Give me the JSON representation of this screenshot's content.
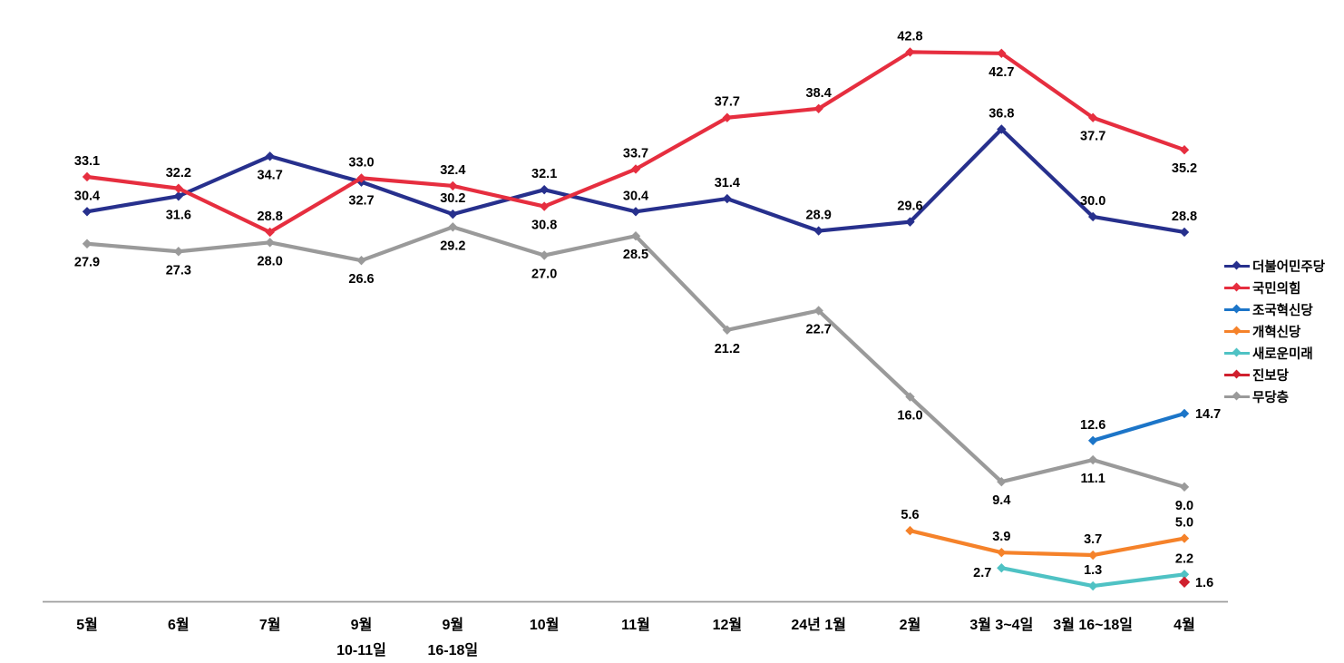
{
  "chart_data": {
    "type": "line",
    "title": "",
    "xlabel": "",
    "ylabel": "",
    "ylim": [
      0,
      46
    ],
    "grid": false,
    "y_axis_visible": false,
    "legend_position": "right",
    "axis_line_color": "#9E9E9E",
    "data_label_color": "#000000",
    "marker_shape": "diamond",
    "categories": [
      [
        "5월"
      ],
      [
        "6월"
      ],
      [
        "7월"
      ],
      [
        "9월",
        "10-11일"
      ],
      [
        "9월",
        "16-18일"
      ],
      [
        "10월"
      ],
      [
        "11월"
      ],
      [
        "12월"
      ],
      [
        "24년 1월"
      ],
      [
        "2월"
      ],
      [
        "3월 3~4일"
      ],
      [
        "3월 16~18일"
      ],
      [
        "4월"
      ]
    ],
    "series": [
      {
        "id": "democratic-party",
        "name": "더불어민주당",
        "color": "#27308D",
        "values": [
          30.4,
          31.6,
          34.7,
          32.7,
          30.2,
          32.1,
          30.4,
          31.4,
          28.9,
          29.6,
          36.8,
          30.0,
          28.8
        ],
        "label_pos": [
          "a",
          "b",
          "b",
          "b",
          "a",
          "a",
          "a",
          "a",
          "a",
          "a",
          "a",
          "a",
          "a"
        ]
      },
      {
        "id": "people-power-party",
        "name": "국민의힘",
        "color": "#E62E3F",
        "values": [
          33.1,
          32.2,
          28.8,
          33.0,
          32.4,
          30.8,
          33.7,
          37.7,
          38.4,
          42.8,
          42.7,
          37.7,
          35.2
        ],
        "label_pos": [
          "a",
          "a",
          "a",
          "a",
          "a",
          "b",
          "a",
          "a",
          "a",
          "a",
          "b",
          "b",
          "b"
        ]
      },
      {
        "id": "rebuilding-korea-party",
        "name": "조국혁신당",
        "color": "#1C75C8",
        "values": [
          null,
          null,
          null,
          null,
          null,
          null,
          null,
          null,
          null,
          null,
          null,
          12.6,
          14.7
        ],
        "label_pos": [
          null,
          null,
          null,
          null,
          null,
          null,
          null,
          null,
          null,
          null,
          null,
          "a",
          "r"
        ]
      },
      {
        "id": "reform-party",
        "name": "개혁신당",
        "color": "#F5822A",
        "values": [
          null,
          null,
          null,
          null,
          null,
          null,
          null,
          null,
          null,
          5.6,
          3.9,
          3.7,
          5.0
        ],
        "label_pos": [
          null,
          null,
          null,
          null,
          null,
          null,
          null,
          null,
          null,
          "a",
          "a",
          "a",
          "a"
        ]
      },
      {
        "id": "new-future-party",
        "name": "새로운미래",
        "color": "#4FC2C4",
        "values": [
          null,
          null,
          null,
          null,
          null,
          null,
          null,
          null,
          null,
          null,
          2.7,
          1.3,
          2.2
        ],
        "label_pos": [
          null,
          null,
          null,
          null,
          null,
          null,
          null,
          null,
          null,
          null,
          "l",
          "a",
          "a"
        ]
      },
      {
        "id": "progressive-party",
        "name": "진보당",
        "color": "#D0202E",
        "marker_size": 6.2,
        "values": [
          null,
          null,
          null,
          null,
          null,
          null,
          null,
          null,
          null,
          null,
          null,
          null,
          1.6
        ],
        "label_pos": [
          null,
          null,
          null,
          null,
          null,
          null,
          null,
          null,
          null,
          null,
          null,
          null,
          "r"
        ]
      },
      {
        "id": "independents",
        "name": "무당층",
        "color": "#9A9A9A",
        "values": [
          27.9,
          27.3,
          28.0,
          26.6,
          29.2,
          27.0,
          28.5,
          21.2,
          22.7,
          16.0,
          9.4,
          11.1,
          9.0
        ],
        "label_pos": [
          "b",
          "b",
          "b",
          "b",
          "b",
          "b",
          "b",
          "b",
          "b",
          "b",
          "b",
          "b",
          "b"
        ]
      }
    ]
  }
}
